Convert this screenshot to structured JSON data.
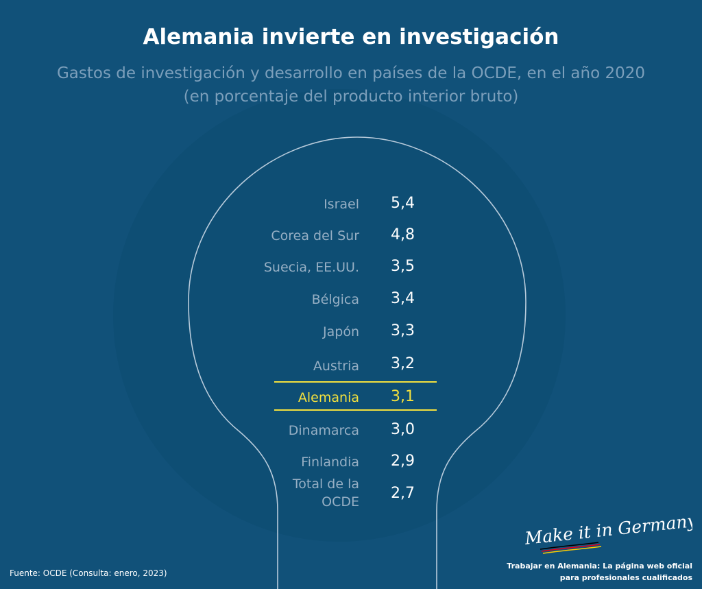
{
  "title": "Alemania invierte en investigación",
  "subtitle_line1": "Gastos de investigación y desarrollo en países de la OCDE, en el año 2020",
  "subtitle_line2": "(en porcentaje del producto interior bruto)",
  "chart_data": {
    "type": "table",
    "title": "Alemania invierte en investigación",
    "subtitle": "Gastos de investigación y desarrollo en países de la OCDE, en el año 2020 (en porcentaje del producto interior bruto)",
    "categories": [
      "Israel",
      "Corea del Sur",
      "Suecia, EE.UU.",
      "Bélgica",
      "Japón",
      "Austria",
      "Alemania",
      "Dinamarca",
      "Finlandia",
      "Total de la OCDE"
    ],
    "values": [
      5.4,
      4.8,
      3.5,
      3.4,
      3.3,
      3.2,
      3.1,
      3.0,
      2.9,
      2.7
    ],
    "value_labels": [
      "5,4",
      "4,8",
      "3,5",
      "3,4",
      "3,3",
      "3,2",
      "3,1",
      "3,0",
      "2,9",
      "2,7"
    ],
    "highlighted": "Alemania",
    "colors": {
      "background": "#115179",
      "text": "#ffffff",
      "label": "#96afc4",
      "highlight": "#f4e13d"
    }
  },
  "rows": [
    {
      "label": "Israel",
      "value": "5,4"
    },
    {
      "label": "Corea del Sur",
      "value": "4,8"
    },
    {
      "label": "Suecia, EE.UU.",
      "value": "3,5"
    },
    {
      "label": "Bélgica",
      "value": "3,4"
    },
    {
      "label": "Japón",
      "value": "3,3"
    },
    {
      "label": "Austria",
      "value": "3,2"
    },
    {
      "label": "Alemania",
      "value": "3,1"
    },
    {
      "label": "Dinamarca",
      "value": "3,0"
    },
    {
      "label": "Finlandia",
      "value": "2,9"
    },
    {
      "label_line1": "Total de la",
      "label_line2": "OCDE",
      "value": "2,7"
    }
  ],
  "source": "Fuente: OCDE (Consulta: enero, 2023)",
  "brand": {
    "signature": "Make it in Germany",
    "tagline_line1": "Trabajar en Alemania: La página web oficial",
    "tagline_line2": "para profesionales cualificados"
  }
}
